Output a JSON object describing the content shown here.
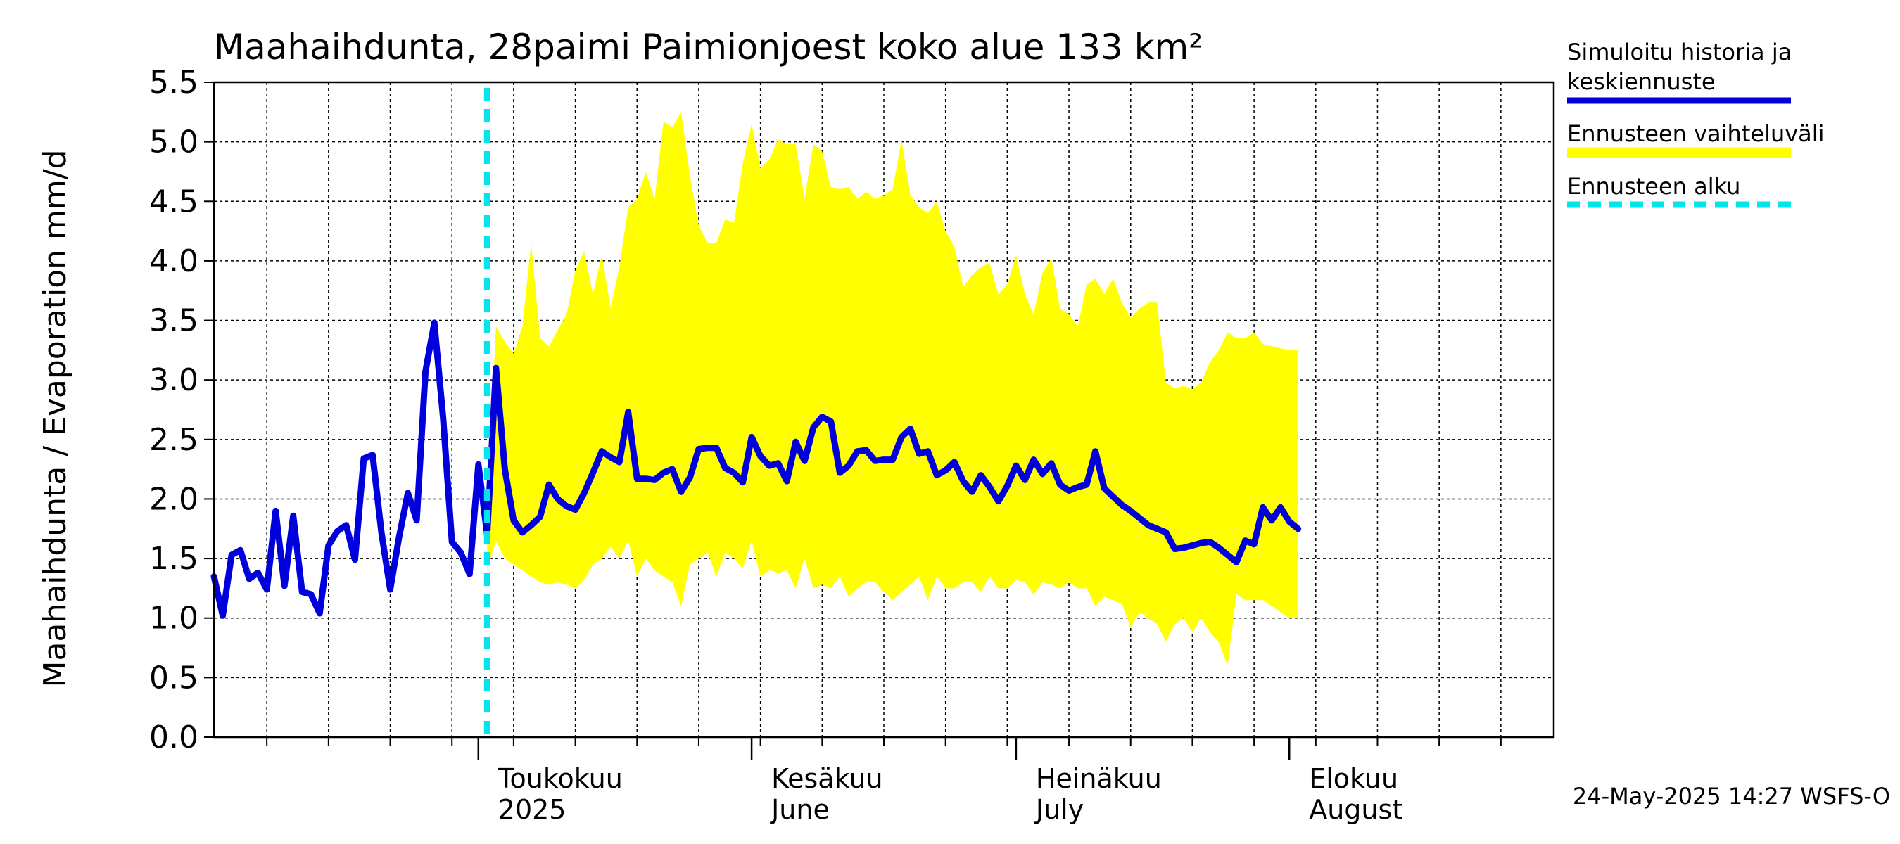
{
  "chart_data": {
    "type": "line",
    "title": "Maahaihdunta, 28paimi Paimionjoest koko alue 133 km²",
    "ylabel": "Maahaihdunta / Evaporation   mm/d",
    "ylim": [
      0,
      5.5
    ],
    "yticks": [
      "0.0",
      "0.5",
      "1.0",
      "1.5",
      "2.0",
      "2.5",
      "3.0",
      "3.5",
      "4.0",
      "4.5",
      "5.0",
      "5.5"
    ],
    "xlim": [
      "2025-04-01",
      "2025-08-31"
    ],
    "grid": true,
    "month_labels": [
      {
        "date": "2025-05-01",
        "line1": "Toukokuu",
        "line2": "2025"
      },
      {
        "date": "2025-06-01",
        "line1": "Kesäkuu",
        "line2": "June"
      },
      {
        "date": "2025-07-01",
        "line1": "Heinäkuu",
        "line2": "July"
      },
      {
        "date": "2025-08-01",
        "line1": "Elokuu",
        "line2": "August"
      }
    ],
    "forecast_start": "2025-05-02",
    "legend": {
      "placement": "right",
      "entries": [
        {
          "line1": "Simuloitu historia ja",
          "line2": "keskiennuste",
          "color": "#0000dd",
          "style": "solid"
        },
        {
          "line1": "Ennusteen vaihteluväli",
          "line2": "",
          "color": "#ffff00",
          "style": "band"
        },
        {
          "line1": "Ennusteen alku",
          "line2": "",
          "color": "#00e5ee",
          "style": "dashed"
        }
      ]
    },
    "series": [
      {
        "name": "Simuloitu historia ja keskiennuste",
        "color": "#0000dd",
        "points": [
          [
            "2025-04-01",
            1.35
          ],
          [
            "2025-04-02",
            1.02
          ],
          [
            "2025-04-03",
            1.53
          ],
          [
            "2025-04-04",
            1.57
          ],
          [
            "2025-04-05",
            1.33
          ],
          [
            "2025-04-06",
            1.38
          ],
          [
            "2025-04-07",
            1.24
          ],
          [
            "2025-04-08",
            1.9
          ],
          [
            "2025-04-09",
            1.27
          ],
          [
            "2025-04-10",
            1.86
          ],
          [
            "2025-04-11",
            1.22
          ],
          [
            "2025-04-12",
            1.2
          ],
          [
            "2025-04-13",
            1.04
          ],
          [
            "2025-04-14",
            1.61
          ],
          [
            "2025-04-15",
            1.73
          ],
          [
            "2025-04-16",
            1.78
          ],
          [
            "2025-04-17",
            1.49
          ],
          [
            "2025-04-18",
            2.34
          ],
          [
            "2025-04-19",
            2.37
          ],
          [
            "2025-04-20",
            1.72
          ],
          [
            "2025-04-21",
            1.24
          ],
          [
            "2025-04-22",
            1.68
          ],
          [
            "2025-04-23",
            2.05
          ],
          [
            "2025-04-24",
            1.82
          ],
          [
            "2025-04-25",
            3.07
          ],
          [
            "2025-04-26",
            3.48
          ],
          [
            "2025-04-27",
            2.68
          ],
          [
            "2025-04-28",
            1.64
          ],
          [
            "2025-04-29",
            1.55
          ],
          [
            "2025-04-30",
            1.37
          ],
          [
            "2025-05-01",
            2.29
          ],
          [
            "2025-05-02",
            1.7
          ],
          [
            "2025-05-03",
            3.1
          ],
          [
            "2025-05-04",
            2.25
          ],
          [
            "2025-05-05",
            1.82
          ],
          [
            "2025-05-06",
            1.72
          ],
          [
            "2025-05-07",
            1.78
          ],
          [
            "2025-05-08",
            1.85
          ],
          [
            "2025-05-09",
            2.12
          ],
          [
            "2025-05-10",
            2.0
          ],
          [
            "2025-05-11",
            1.94
          ],
          [
            "2025-05-12",
            1.91
          ],
          [
            "2025-05-13",
            2.05
          ],
          [
            "2025-05-14",
            2.22
          ],
          [
            "2025-05-15",
            2.4
          ],
          [
            "2025-05-16",
            2.35
          ],
          [
            "2025-05-17",
            2.31
          ],
          [
            "2025-05-18",
            2.73
          ],
          [
            "2025-05-19",
            2.17
          ],
          [
            "2025-05-20",
            2.17
          ],
          [
            "2025-05-21",
            2.16
          ],
          [
            "2025-05-22",
            2.22
          ],
          [
            "2025-05-23",
            2.25
          ],
          [
            "2025-05-24",
            2.06
          ],
          [
            "2025-05-25",
            2.18
          ],
          [
            "2025-05-26",
            2.42
          ],
          [
            "2025-05-27",
            2.43
          ],
          [
            "2025-05-28",
            2.43
          ],
          [
            "2025-05-29",
            2.26
          ],
          [
            "2025-05-30",
            2.22
          ],
          [
            "2025-05-31",
            2.14
          ],
          [
            "2025-06-01",
            2.52
          ],
          [
            "2025-06-02",
            2.36
          ],
          [
            "2025-06-03",
            2.28
          ],
          [
            "2025-06-04",
            2.3
          ],
          [
            "2025-06-05",
            2.15
          ],
          [
            "2025-06-06",
            2.48
          ],
          [
            "2025-06-07",
            2.32
          ],
          [
            "2025-06-08",
            2.6
          ],
          [
            "2025-06-09",
            2.69
          ],
          [
            "2025-06-10",
            2.65
          ],
          [
            "2025-06-11",
            2.22
          ],
          [
            "2025-06-12",
            2.28
          ],
          [
            "2025-06-13",
            2.4
          ],
          [
            "2025-06-14",
            2.41
          ],
          [
            "2025-06-15",
            2.32
          ],
          [
            "2025-06-16",
            2.33
          ],
          [
            "2025-06-17",
            2.33
          ],
          [
            "2025-06-18",
            2.52
          ],
          [
            "2025-06-19",
            2.59
          ],
          [
            "2025-06-20",
            2.38
          ],
          [
            "2025-06-21",
            2.4
          ],
          [
            "2025-06-22",
            2.2
          ],
          [
            "2025-06-23",
            2.24
          ],
          [
            "2025-06-24",
            2.31
          ],
          [
            "2025-06-25",
            2.15
          ],
          [
            "2025-06-26",
            2.06
          ],
          [
            "2025-06-27",
            2.2
          ],
          [
            "2025-06-28",
            2.1
          ],
          [
            "2025-06-29",
            1.98
          ],
          [
            "2025-06-30",
            2.11
          ],
          [
            "2025-07-01",
            2.28
          ],
          [
            "2025-07-02",
            2.16
          ],
          [
            "2025-07-03",
            2.33
          ],
          [
            "2025-07-04",
            2.21
          ],
          [
            "2025-07-05",
            2.3
          ],
          [
            "2025-07-06",
            2.12
          ],
          [
            "2025-07-07",
            2.07
          ],
          [
            "2025-07-08",
            2.1
          ],
          [
            "2025-07-09",
            2.12
          ],
          [
            "2025-07-10",
            2.4
          ],
          [
            "2025-07-11",
            2.09
          ],
          [
            "2025-07-12",
            2.02
          ],
          [
            "2025-07-13",
            1.95
          ],
          [
            "2025-07-14",
            1.9
          ],
          [
            "2025-07-15",
            1.84
          ],
          [
            "2025-07-16",
            1.78
          ],
          [
            "2025-07-17",
            1.75
          ],
          [
            "2025-07-18",
            1.72
          ],
          [
            "2025-07-19",
            1.58
          ],
          [
            "2025-07-20",
            1.59
          ],
          [
            "2025-07-21",
            1.61
          ],
          [
            "2025-07-22",
            1.63
          ],
          [
            "2025-07-23",
            1.64
          ],
          [
            "2025-07-24",
            1.59
          ],
          [
            "2025-07-25",
            1.53
          ],
          [
            "2025-07-26",
            1.47
          ],
          [
            "2025-07-27",
            1.65
          ],
          [
            "2025-07-28",
            1.62
          ],
          [
            "2025-07-29",
            1.93
          ],
          [
            "2025-07-30",
            1.82
          ],
          [
            "2025-07-31",
            1.93
          ],
          [
            "2025-08-01",
            1.81
          ],
          [
            "2025-08-02",
            1.75
          ]
        ]
      },
      {
        "name": "Ennusteen vaihteluväli",
        "color": "#ffff00",
        "points": [
          [
            "2025-05-02",
            1.4,
            1.9
          ],
          [
            "2025-05-03",
            1.65,
            3.45
          ],
          [
            "2025-05-04",
            1.5,
            3.32
          ],
          [
            "2025-05-05",
            1.45,
            3.22
          ],
          [
            "2025-05-06",
            1.4,
            3.45
          ],
          [
            "2025-05-07",
            1.35,
            4.15
          ],
          [
            "2025-05-08",
            1.3,
            3.35
          ],
          [
            "2025-05-09",
            1.28,
            3.28
          ],
          [
            "2025-05-10",
            1.3,
            3.42
          ],
          [
            "2025-05-11",
            1.28,
            3.55
          ],
          [
            "2025-05-12",
            1.25,
            3.92
          ],
          [
            "2025-05-13",
            1.32,
            4.08
          ],
          [
            "2025-05-14",
            1.45,
            3.72
          ],
          [
            "2025-05-15",
            1.5,
            4.05
          ],
          [
            "2025-05-16",
            1.6,
            3.6
          ],
          [
            "2025-05-17",
            1.5,
            3.95
          ],
          [
            "2025-05-18",
            1.65,
            4.45
          ],
          [
            "2025-05-19",
            1.35,
            4.52
          ],
          [
            "2025-05-20",
            1.5,
            4.75
          ],
          [
            "2025-05-21",
            1.4,
            4.52
          ],
          [
            "2025-05-22",
            1.35,
            5.17
          ],
          [
            "2025-05-23",
            1.3,
            5.12
          ],
          [
            "2025-05-24",
            1.1,
            5.25
          ],
          [
            "2025-05-25",
            1.45,
            4.72
          ],
          [
            "2025-05-26",
            1.5,
            4.3
          ],
          [
            "2025-05-27",
            1.55,
            4.15
          ],
          [
            "2025-05-28",
            1.35,
            4.15
          ],
          [
            "2025-05-29",
            1.55,
            4.35
          ],
          [
            "2025-05-30",
            1.5,
            4.32
          ],
          [
            "2025-05-31",
            1.42,
            4.82
          ],
          [
            "2025-06-01",
            1.65,
            5.15
          ],
          [
            "2025-06-02",
            1.35,
            4.78
          ],
          [
            "2025-06-03",
            1.4,
            4.85
          ],
          [
            "2025-06-04",
            1.38,
            5.02
          ],
          [
            "2025-06-05",
            1.4,
            4.98
          ],
          [
            "2025-06-06",
            1.25,
            4.98
          ],
          [
            "2025-06-07",
            1.5,
            4.52
          ],
          [
            "2025-06-08",
            1.25,
            4.98
          ],
          [
            "2025-06-09",
            1.28,
            4.92
          ],
          [
            "2025-06-10",
            1.25,
            4.62
          ],
          [
            "2025-06-11",
            1.35,
            4.6
          ],
          [
            "2025-06-12",
            1.18,
            4.62
          ],
          [
            "2025-06-13",
            1.25,
            4.52
          ],
          [
            "2025-06-14",
            1.3,
            4.58
          ],
          [
            "2025-06-15",
            1.3,
            4.52
          ],
          [
            "2025-06-16",
            1.22,
            4.55
          ],
          [
            "2025-06-17",
            1.15,
            4.6
          ],
          [
            "2025-06-18",
            1.22,
            5.02
          ],
          [
            "2025-06-19",
            1.28,
            4.55
          ],
          [
            "2025-06-20",
            1.35,
            4.45
          ],
          [
            "2025-06-21",
            1.15,
            4.4
          ],
          [
            "2025-06-22",
            1.35,
            4.5
          ],
          [
            "2025-06-23",
            1.25,
            4.25
          ],
          [
            "2025-06-24",
            1.25,
            4.12
          ],
          [
            "2025-06-25",
            1.3,
            3.78
          ],
          [
            "2025-06-26",
            1.3,
            3.88
          ],
          [
            "2025-06-27",
            1.22,
            3.95
          ],
          [
            "2025-06-28",
            1.35,
            3.98
          ],
          [
            "2025-06-29",
            1.25,
            3.72
          ],
          [
            "2025-06-30",
            1.25,
            3.8
          ],
          [
            "2025-07-01",
            1.32,
            4.05
          ],
          [
            "2025-07-02",
            1.3,
            3.72
          ],
          [
            "2025-07-03",
            1.2,
            3.55
          ],
          [
            "2025-07-04",
            1.3,
            3.9
          ],
          [
            "2025-07-05",
            1.28,
            4.02
          ],
          [
            "2025-07-06",
            1.25,
            3.6
          ],
          [
            "2025-07-07",
            1.3,
            3.55
          ],
          [
            "2025-07-08",
            1.25,
            3.45
          ],
          [
            "2025-07-09",
            1.25,
            3.8
          ],
          [
            "2025-07-10",
            1.1,
            3.85
          ],
          [
            "2025-07-11",
            1.18,
            3.72
          ],
          [
            "2025-07-12",
            1.15,
            3.85
          ],
          [
            "2025-07-13",
            1.12,
            3.65
          ],
          [
            "2025-07-14",
            0.92,
            3.52
          ],
          [
            "2025-07-15",
            1.05,
            3.6
          ],
          [
            "2025-07-16",
            1.0,
            3.65
          ],
          [
            "2025-07-17",
            0.95,
            3.65
          ],
          [
            "2025-07-18",
            0.8,
            2.98
          ],
          [
            "2025-07-19",
            0.95,
            2.93
          ],
          [
            "2025-07-20",
            1.0,
            2.95
          ],
          [
            "2025-07-21",
            0.88,
            2.92
          ],
          [
            "2025-07-22",
            1.0,
            2.98
          ],
          [
            "2025-07-23",
            0.88,
            3.15
          ],
          [
            "2025-07-24",
            0.8,
            3.25
          ],
          [
            "2025-07-25",
            0.6,
            3.4
          ],
          [
            "2025-07-26",
            1.2,
            3.35
          ],
          [
            "2025-07-27",
            1.15,
            3.35
          ],
          [
            "2025-07-28",
            1.15,
            3.4
          ],
          [
            "2025-07-29",
            1.15,
            3.3
          ],
          [
            "2025-08-01",
            1.0,
            3.25
          ],
          [
            "2025-08-02",
            1.0,
            3.25
          ]
        ]
      }
    ]
  },
  "footer": {
    "timestamp": "24-May-2025 14:27 WSFS-O"
  }
}
